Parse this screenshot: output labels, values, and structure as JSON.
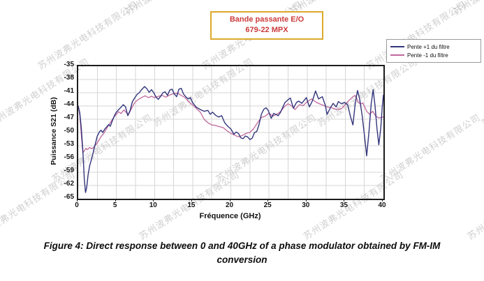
{
  "watermark": {
    "text": "苏州波弗光电科技有限公司"
  },
  "title_box": {
    "line1": "Bande passante E/O",
    "line2": "679-22 MPX",
    "text_color": "#cc3b3b",
    "border_color": "#dca92c"
  },
  "caption": "Figure 4: Direct response between 0 and 40GHz of a phase modulator obtained by FM-IM conversion",
  "chart_data": {
    "type": "line",
    "title": "Bande passante E/O 679-22 MPX",
    "xlabel": "Fréquence (GHz)",
    "ylabel": "Puissance S21 (dB)",
    "xlim": [
      0,
      40
    ],
    "ylim": [
      -65,
      -35
    ],
    "xticks": [
      0,
      5,
      10,
      15,
      20,
      25,
      30,
      35,
      40
    ],
    "yticks": [
      -35,
      -38,
      -41,
      -44,
      -47,
      -50,
      -53,
      -56,
      -59,
      -62,
      -65
    ],
    "grid": true,
    "grid_x_step": 2.5,
    "grid_y_step": 3,
    "grid_color": "#d6d6d6",
    "legend_position": "top-right-outside",
    "series": [
      {
        "name": "Pente +1 du filtre",
        "color": "#32357b",
        "points": [
          [
            0,
            -44
          ],
          [
            0.2,
            -45.5
          ],
          [
            0.4,
            -49
          ],
          [
            0.6,
            -54
          ],
          [
            0.8,
            -60.5
          ],
          [
            0.95,
            -63.6
          ],
          [
            1.1,
            -62.6
          ],
          [
            1.3,
            -59.5
          ],
          [
            1.5,
            -57.5
          ],
          [
            1.7,
            -56.3
          ],
          [
            1.9,
            -55
          ],
          [
            2.1,
            -53.5
          ],
          [
            2.3,
            -52.2
          ],
          [
            2.5,
            -50.8
          ],
          [
            2.8,
            -49.8
          ],
          [
            3,
            -49.5
          ],
          [
            3.2,
            -50
          ],
          [
            3.5,
            -49.2
          ],
          [
            3.8,
            -48.6
          ],
          [
            4,
            -48.2
          ],
          [
            4.2,
            -48.6
          ],
          [
            4.5,
            -47.2
          ],
          [
            4.8,
            -46
          ],
          [
            5,
            -45.4
          ],
          [
            5.3,
            -44.8
          ],
          [
            5.6,
            -44.3
          ],
          [
            5.9,
            -43.7
          ],
          [
            6.2,
            -44.2
          ],
          [
            6.5,
            -46.2
          ],
          [
            6.8,
            -45
          ],
          [
            7.1,
            -43
          ],
          [
            7.4,
            -42.2
          ],
          [
            7.7,
            -41.4
          ],
          [
            8,
            -41
          ],
          [
            8.3,
            -40.3
          ],
          [
            8.7,
            -39.6
          ],
          [
            9,
            -40.1
          ],
          [
            9.3,
            -40.9
          ],
          [
            9.6,
            -40.3
          ],
          [
            9.9,
            -41
          ],
          [
            10.2,
            -42
          ],
          [
            10.5,
            -42.5
          ],
          [
            10.8,
            -41.8
          ],
          [
            11.1,
            -41
          ],
          [
            11.4,
            -40.8
          ],
          [
            11.7,
            -41.6
          ],
          [
            12,
            -40.4
          ],
          [
            12.3,
            -40.2
          ],
          [
            12.6,
            -41.3
          ],
          [
            12.9,
            -41.9
          ],
          [
            13.2,
            -40.2
          ],
          [
            13.5,
            -40
          ],
          [
            13.8,
            -41.3
          ],
          [
            14.1,
            -41.9
          ],
          [
            14.4,
            -42.4
          ],
          [
            14.7,
            -42.1
          ],
          [
            15,
            -43.3
          ],
          [
            15.5,
            -44.3
          ],
          [
            16,
            -44.8
          ],
          [
            16.5,
            -45.2
          ],
          [
            17,
            -45
          ],
          [
            17.3,
            -45.9
          ],
          [
            17.6,
            -45.4
          ],
          [
            18,
            -46.1
          ],
          [
            18.4,
            -46.5
          ],
          [
            18.8,
            -46.2
          ],
          [
            19.2,
            -47.8
          ],
          [
            19.6,
            -48.6
          ],
          [
            20,
            -49.2
          ],
          [
            20.4,
            -50.4
          ],
          [
            20.7,
            -49.9
          ],
          [
            21,
            -50.2
          ],
          [
            21.3,
            -51.2
          ],
          [
            21.6,
            -51.4
          ],
          [
            21.9,
            -50.8
          ],
          [
            22.2,
            -51
          ],
          [
            22.5,
            -51.6
          ],
          [
            22.8,
            -51.3
          ],
          [
            23.1,
            -50
          ],
          [
            23.4,
            -49.8
          ],
          [
            23.7,
            -48.2
          ],
          [
            24,
            -45.9
          ],
          [
            24.3,
            -44.8
          ],
          [
            24.6,
            -44.4
          ],
          [
            24.9,
            -45
          ],
          [
            25.3,
            -46.8
          ],
          [
            25.6,
            -45.7
          ],
          [
            25.9,
            -45.9
          ],
          [
            26.2,
            -46.2
          ],
          [
            26.5,
            -45.5
          ],
          [
            26.8,
            -44.3
          ],
          [
            27.1,
            -43.2
          ],
          [
            27.5,
            -42.6
          ],
          [
            27.8,
            -42.2
          ],
          [
            28.2,
            -44.5
          ],
          [
            28.6,
            -43.2
          ],
          [
            28.9,
            -42.9
          ],
          [
            29.3,
            -43.4
          ],
          [
            29.9,
            -42.1
          ],
          [
            30.3,
            -44.2
          ],
          [
            30.7,
            -42.8
          ],
          [
            31.1,
            -40.6
          ],
          [
            31.5,
            -42.4
          ],
          [
            32,
            -41.9
          ],
          [
            32.4,
            -44
          ],
          [
            32.6,
            -45.9
          ],
          [
            33,
            -44.6
          ],
          [
            33.4,
            -43.4
          ],
          [
            33.8,
            -44.2
          ],
          [
            34.1,
            -43
          ],
          [
            34.5,
            -43.5
          ],
          [
            34.9,
            -43.2
          ],
          [
            35.3,
            -43.7
          ],
          [
            35.7,
            -46.5
          ],
          [
            36,
            -48.3
          ],
          [
            36.3,
            -43.5
          ],
          [
            36.6,
            -40.5
          ],
          [
            36.9,
            -42.5
          ],
          [
            37.2,
            -46
          ],
          [
            37.5,
            -50.5
          ],
          [
            37.8,
            -55.3
          ],
          [
            38.1,
            -50
          ],
          [
            38.4,
            -43.5
          ],
          [
            38.65,
            -40.3
          ],
          [
            38.9,
            -44
          ],
          [
            39.15,
            -49
          ],
          [
            39.4,
            -52.8
          ],
          [
            39.65,
            -49
          ],
          [
            39.85,
            -44
          ],
          [
            40,
            -41.5
          ]
        ]
      },
      {
        "name": "Pente -1 du filtre",
        "color": "#c0679c",
        "points": [
          [
            0,
            -44
          ],
          [
            0.2,
            -46
          ],
          [
            0.4,
            -50.5
          ],
          [
            0.6,
            -54.6
          ],
          [
            0.8,
            -54.2
          ],
          [
            1,
            -53.6
          ],
          [
            1.2,
            -53.9
          ],
          [
            1.5,
            -53.4
          ],
          [
            1.8,
            -53.7
          ],
          [
            2.1,
            -53.2
          ],
          [
            2.4,
            -52.6
          ],
          [
            2.7,
            -51.8
          ],
          [
            3,
            -50.9
          ],
          [
            3.3,
            -50.3
          ],
          [
            3.6,
            -49.5
          ],
          [
            4,
            -48.3
          ],
          [
            4.3,
            -47.5
          ],
          [
            4.6,
            -46.7
          ],
          [
            5,
            -45.9
          ],
          [
            5.3,
            -45.3
          ],
          [
            5.6,
            -45.7
          ],
          [
            6,
            -44.9
          ],
          [
            6.3,
            -45.5
          ],
          [
            6.6,
            -45.9
          ],
          [
            7,
            -44.5
          ],
          [
            7.3,
            -43.5
          ],
          [
            7.6,
            -42.9
          ],
          [
            8,
            -42.4
          ],
          [
            8.4,
            -42
          ],
          [
            8.8,
            -41.7
          ],
          [
            9.2,
            -42.1
          ],
          [
            9.6,
            -41.8
          ],
          [
            10,
            -42.1
          ],
          [
            10.5,
            -41.8
          ],
          [
            11,
            -41.6
          ],
          [
            11.5,
            -42
          ],
          [
            12,
            -41.5
          ],
          [
            12.5,
            -41.2
          ],
          [
            13,
            -41.1
          ],
          [
            13.5,
            -41.6
          ],
          [
            14,
            -42.1
          ],
          [
            14.4,
            -42.9
          ],
          [
            15,
            -43.8
          ],
          [
            15.5,
            -44.6
          ],
          [
            16,
            -45.4
          ],
          [
            16.5,
            -47
          ],
          [
            17,
            -47.8
          ],
          [
            17.5,
            -48.3
          ],
          [
            18,
            -48.4
          ],
          [
            18.5,
            -48.7
          ],
          [
            19,
            -48.9
          ],
          [
            19.5,
            -49.6
          ],
          [
            20,
            -50.2
          ],
          [
            20.5,
            -50.6
          ],
          [
            21,
            -51
          ],
          [
            21.5,
            -50.7
          ],
          [
            22,
            -50.2
          ],
          [
            22.5,
            -50
          ],
          [
            23,
            -49.1
          ],
          [
            23.5,
            -47.8
          ],
          [
            24,
            -46.6
          ],
          [
            24.5,
            -46.3
          ],
          [
            25,
            -45.6
          ],
          [
            25.5,
            -46.3
          ],
          [
            26,
            -45.9
          ],
          [
            26.5,
            -45.3
          ],
          [
            27,
            -44.2
          ],
          [
            27.5,
            -43.5
          ],
          [
            28,
            -44
          ],
          [
            28.4,
            -44.8
          ],
          [
            29,
            -43.7
          ],
          [
            29.5,
            -43.9
          ],
          [
            30,
            -43
          ],
          [
            30.6,
            -42.4
          ],
          [
            31.2,
            -43.2
          ],
          [
            31.9,
            -43.7
          ],
          [
            32.6,
            -44.2
          ],
          [
            33.2,
            -44.4
          ],
          [
            33.9,
            -44.8
          ],
          [
            34.5,
            -44.6
          ],
          [
            35,
            -43.7
          ],
          [
            35.5,
            -42.7
          ],
          [
            36,
            -41.9
          ],
          [
            36.3,
            -41.6
          ],
          [
            36.7,
            -43.1
          ],
          [
            37,
            -43.6
          ],
          [
            37.3,
            -43.3
          ],
          [
            37.8,
            -45.2
          ],
          [
            38.2,
            -45.9
          ],
          [
            38.6,
            -45.2
          ],
          [
            39,
            -46.3
          ],
          [
            39.4,
            -46.7
          ],
          [
            40,
            -46.5
          ]
        ]
      }
    ]
  }
}
